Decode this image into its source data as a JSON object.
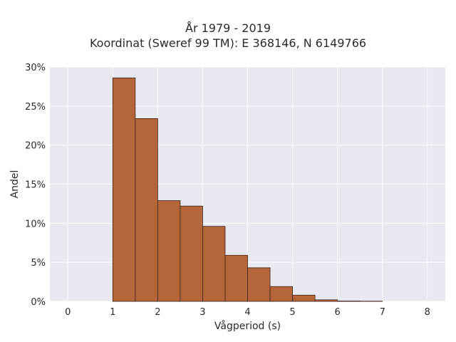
{
  "chart_data": {
    "type": "bar",
    "title": "År 1979 - 2019",
    "subtitle": "Koordinat (Sweref 99 TM): E 368146, N 6149766",
    "xlabel": "Vågperiod (s)",
    "ylabel": "Andel",
    "xlim": [
      -0.4,
      8.4
    ],
    "ylim": [
      0,
      0.3
    ],
    "x_ticks": [
      0,
      1,
      2,
      3,
      4,
      5,
      6,
      7,
      8
    ],
    "x_tick_labels": [
      "0",
      "1",
      "2",
      "3",
      "4",
      "5",
      "6",
      "7",
      "8"
    ],
    "y_ticks": [
      0,
      0.05,
      0.1,
      0.15,
      0.2,
      0.25,
      0.3
    ],
    "y_tick_labels": [
      "0%",
      "5%",
      "10%",
      "15%",
      "20%",
      "25%",
      "30%"
    ],
    "bin_width": 0.5,
    "bins": [
      {
        "x0": 1.0,
        "x1": 1.5,
        "value": 0.286
      },
      {
        "x0": 1.5,
        "x1": 2.0,
        "value": 0.234
      },
      {
        "x0": 2.0,
        "x1": 2.5,
        "value": 0.129
      },
      {
        "x0": 2.5,
        "x1": 3.0,
        "value": 0.122
      },
      {
        "x0": 3.0,
        "x1": 3.5,
        "value": 0.096
      },
      {
        "x0": 3.5,
        "x1": 4.0,
        "value": 0.059
      },
      {
        "x0": 4.0,
        "x1": 4.5,
        "value": 0.043
      },
      {
        "x0": 4.5,
        "x1": 5.0,
        "value": 0.019
      },
      {
        "x0": 5.0,
        "x1": 5.5,
        "value": 0.008
      },
      {
        "x0": 5.5,
        "x1": 6.0,
        "value": 0.002
      },
      {
        "x0": 6.0,
        "x1": 6.5,
        "value": 0.0005
      },
      {
        "x0": 6.5,
        "x1": 7.0,
        "value": 0.0003
      }
    ],
    "grid": true,
    "colors": {
      "bar_fill": "#b5653a",
      "bar_stroke": "#3b2418",
      "plot_background": "#e8e8f0",
      "grid": "#ffffff"
    }
  }
}
